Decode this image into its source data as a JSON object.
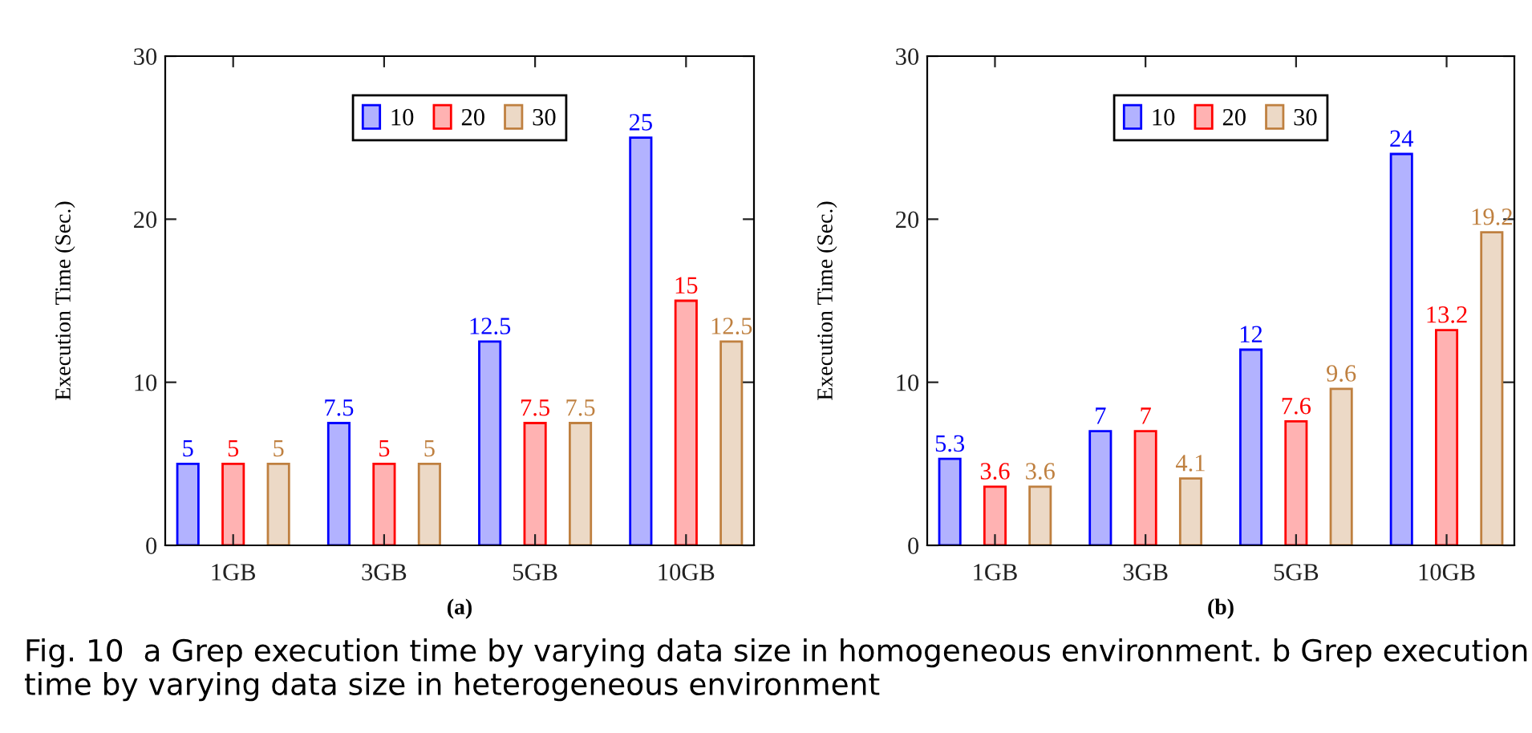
{
  "chart_data": [
    {
      "type": "bar",
      "xlabel": "(a)",
      "ylabel": "Execution Time (Sec.)",
      "categories": [
        "1GB",
        "3GB",
        "5GB",
        "10GB"
      ],
      "series": [
        {
          "name": "10",
          "color": "#0000ff",
          "values": [
            5,
            7.5,
            12.5,
            25
          ]
        },
        {
          "name": "20",
          "color": "#ff0000",
          "values": [
            5,
            5,
            7.5,
            15
          ]
        },
        {
          "name": "30",
          "color": "#bf8040",
          "values": [
            5,
            5,
            7.5,
            12.5
          ]
        }
      ],
      "ylim": [
        0,
        30
      ],
      "yticks": [
        0,
        10,
        20,
        30
      ],
      "data_labels": true,
      "legend": "top",
      "grid": false,
      "annotations": [
        "Fig. 10  a Grep execution time by varying data size in homogeneous environment. b Grep execution time by varying data size in heterogeneous environment"
      ]
    },
    {
      "type": "bar",
      "xlabel": "(b)",
      "ylabel": "Execution Time (Sec.)",
      "categories": [
        "1GB",
        "3GB",
        "5GB",
        "10GB"
      ],
      "series": [
        {
          "name": "10",
          "color": "#0000ff",
          "values": [
            5.3,
            7,
            12,
            24
          ]
        },
        {
          "name": "20",
          "color": "#ff0000",
          "values": [
            3.6,
            7,
            7.6,
            13.2
          ]
        },
        {
          "name": "30",
          "color": "#bf8040",
          "values": [
            3.6,
            4.1,
            9.6,
            19.2
          ]
        }
      ],
      "ylim": [
        0,
        30
      ],
      "yticks": [
        0,
        10,
        20,
        30
      ],
      "data_labels": true,
      "legend": "top",
      "grid": false
    }
  ]
}
